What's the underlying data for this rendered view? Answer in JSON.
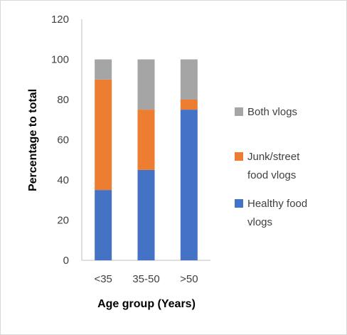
{
  "chart_data": {
    "type": "bar",
    "stacked": true,
    "categories": [
      "<35",
      "35-50",
      ">50"
    ],
    "series": [
      {
        "name": "Healthy food vlogs",
        "values": [
          35,
          45,
          75
        ],
        "color": "#4472C4"
      },
      {
        "name": "Junk/street food vlogs",
        "values": [
          55,
          30,
          5
        ],
        "color": "#ED7D31"
      },
      {
        "name": "Both vlogs",
        "values": [
          10,
          25,
          20
        ],
        "color": "#A5A5A5"
      }
    ],
    "xlabel": "Age group  (Years)",
    "ylabel": "Percentage to total",
    "ylim": [
      0,
      120
    ],
    "yticks": [
      "0",
      "20",
      "40",
      "60",
      "80",
      "100",
      "120"
    ],
    "legend_position": "right",
    "grid": false,
    "legend": {
      "both": [
        "Both vlogs"
      ],
      "junk": [
        "Junk/street",
        "food vlogs"
      ],
      "healthy": [
        "Healthy food",
        "vlogs"
      ]
    }
  }
}
